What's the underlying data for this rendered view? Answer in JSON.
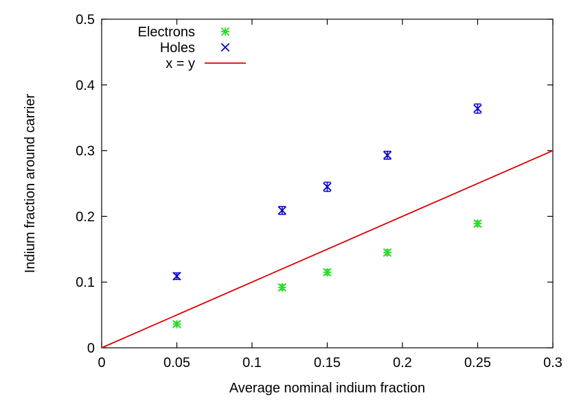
{
  "chart_data": {
    "type": "scatter",
    "title": "",
    "xlabel": "Average nominal indium fraction",
    "ylabel": "Indium fraction around carrier",
    "xlim": [
      0,
      0.3
    ],
    "ylim": [
      0,
      0.5
    ],
    "x_ticks": [
      {
        "value": 0,
        "label": "0"
      },
      {
        "value": 0.05,
        "label": "0.05"
      },
      {
        "value": 0.1,
        "label": "0.1"
      },
      {
        "value": 0.15,
        "label": "0.15"
      },
      {
        "value": 0.2,
        "label": "0.2"
      },
      {
        "value": 0.25,
        "label": "0.25"
      },
      {
        "value": 0.3,
        "label": "0.3"
      }
    ],
    "y_ticks": [
      {
        "value": 0,
        "label": "0"
      },
      {
        "value": 0.1,
        "label": "0.1"
      },
      {
        "value": 0.2,
        "label": "0.2"
      },
      {
        "value": 0.3,
        "label": "0.3"
      },
      {
        "value": 0.4,
        "label": "0.4"
      },
      {
        "value": 0.5,
        "label": "0.5"
      }
    ],
    "grid": false,
    "legend_position": "top-left",
    "series": [
      {
        "name": "Electrons",
        "marker": "asterisk",
        "color": "#22dd22",
        "points": [
          {
            "x": 0.05,
            "y": 0.036,
            "err": 0.003
          },
          {
            "x": 0.12,
            "y": 0.092,
            "err": 0.004
          },
          {
            "x": 0.15,
            "y": 0.115,
            "err": 0.004
          },
          {
            "x": 0.19,
            "y": 0.145,
            "err": 0.004
          },
          {
            "x": 0.25,
            "y": 0.189,
            "err": 0.004
          }
        ]
      },
      {
        "name": "Holes",
        "marker": "cross",
        "color": "#0000cc",
        "points": [
          {
            "x": 0.05,
            "y": 0.109,
            "err": 0.005
          },
          {
            "x": 0.12,
            "y": 0.209,
            "err": 0.006
          },
          {
            "x": 0.15,
            "y": 0.245,
            "err": 0.007
          },
          {
            "x": 0.19,
            "y": 0.293,
            "err": 0.006
          },
          {
            "x": 0.25,
            "y": 0.364,
            "err": 0.007
          }
        ]
      }
    ],
    "reference_line": {
      "name": "x = y",
      "color": "#dd0000",
      "from": [
        0,
        0
      ],
      "to": [
        0.3,
        0.3
      ]
    }
  }
}
